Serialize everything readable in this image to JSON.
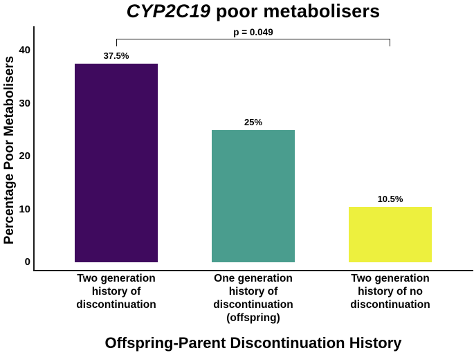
{
  "chart_data": {
    "type": "bar",
    "title": "CYP2C19 poor metabolisers",
    "title_parts": {
      "italic": "CYP2C19",
      "rest": " poor metabolisers"
    },
    "categories": [
      "Two generation\nhistory of\ndiscontinuation",
      "One generation\nhistory of\ndiscontinuation\n(offspring)",
      "Two generation\nhistory of no\ndiscontinuation"
    ],
    "values": [
      37.5,
      25,
      10.5
    ],
    "value_labels": [
      "37.5%",
      "25%",
      "10.5%"
    ],
    "bar_colors": [
      "#3F0A5E",
      "#4A9D8E",
      "#EDF03E"
    ],
    "xlabel": "Offspring-Parent Discontinuation History",
    "ylabel": "Percentage Poor Metabolisers",
    "yticks": [
      0,
      10,
      20,
      30,
      40
    ],
    "ylim": [
      0,
      42
    ],
    "grid": false,
    "legend": false,
    "axis_color": "#1a1a1a",
    "annotation": {
      "text": "p = 0.049",
      "p_value": 0.049,
      "between": [
        0,
        2
      ]
    }
  }
}
